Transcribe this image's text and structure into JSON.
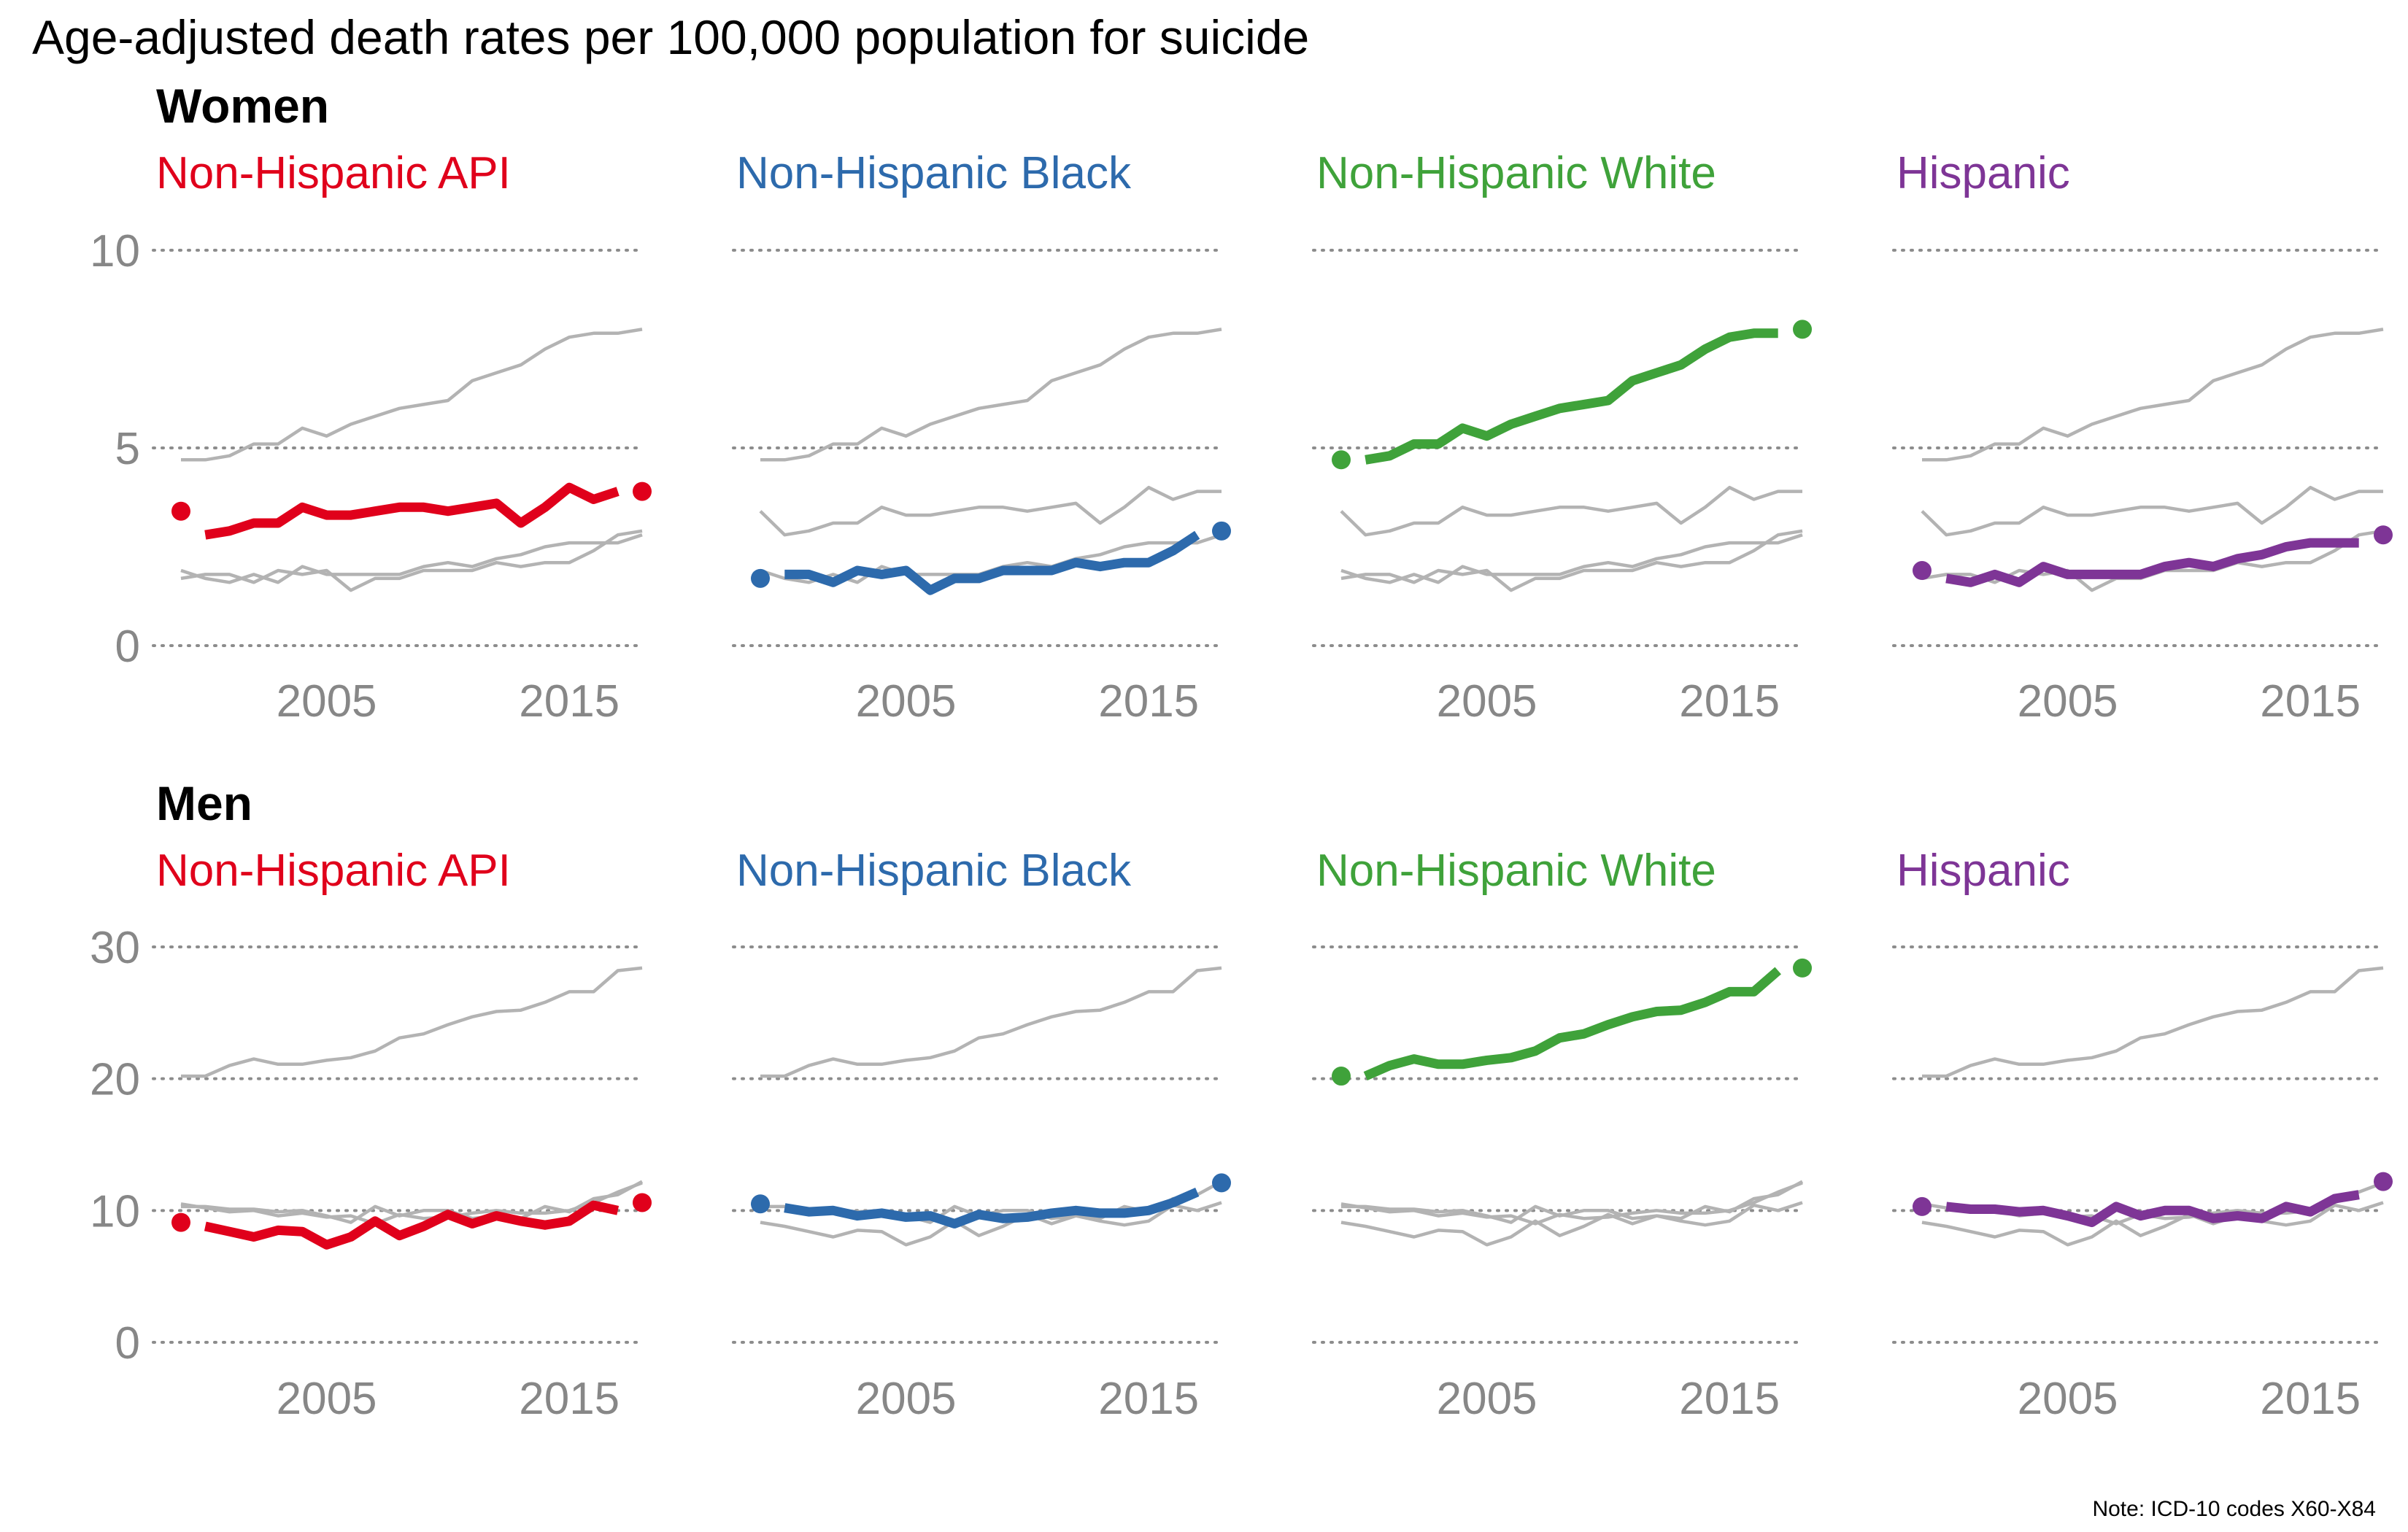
{
  "title": "Age-adjusted death rates per 100,000 population for suicide",
  "note": "Note: ICD-10 codes X60-X84",
  "colors": {
    "Non-Hispanic API": "#e0001b",
    "Non-Hispanic Black": "#2d6aac",
    "Non-Hispanic White": "#3fa23a",
    "Hispanic": "#7e3596",
    "background_series": "#b3b3b3",
    "axis_text": "#878787"
  },
  "chart_data": [
    {
      "type": "line",
      "section": "Women",
      "panels": [
        "Non-Hispanic API",
        "Non-Hispanic Black",
        "Non-Hispanic White",
        "Hispanic"
      ],
      "x": [
        1999,
        2000,
        2001,
        2002,
        2003,
        2004,
        2005,
        2006,
        2007,
        2008,
        2009,
        2010,
        2011,
        2012,
        2013,
        2014,
        2015,
        2016,
        2017,
        2018
      ],
      "x_ticks": [
        2005,
        2015
      ],
      "y_ticks": [
        0,
        5,
        10
      ],
      "ylim": [
        0,
        10
      ],
      "grid": "horizontal dotted",
      "series": [
        {
          "name": "Non-Hispanic API",
          "values": [
            3.4,
            2.8,
            2.9,
            3.1,
            3.1,
            3.5,
            3.3,
            3.3,
            3.4,
            3.5,
            3.5,
            3.4,
            3.5,
            3.6,
            3.1,
            3.5,
            4.0,
            3.7,
            3.9,
            3.9
          ]
        },
        {
          "name": "Non-Hispanic Black",
          "values": [
            1.7,
            1.8,
            1.8,
            1.6,
            1.9,
            1.8,
            1.9,
            1.4,
            1.7,
            1.7,
            1.9,
            1.9,
            1.9,
            2.1,
            2.0,
            2.1,
            2.1,
            2.4,
            2.8,
            2.9
          ]
        },
        {
          "name": "Non-Hispanic White",
          "values": [
            4.7,
            4.7,
            4.8,
            5.1,
            5.1,
            5.5,
            5.3,
            5.6,
            5.8,
            6.0,
            6.1,
            6.2,
            6.7,
            6.9,
            7.1,
            7.5,
            7.8,
            7.9,
            7.9,
            8.0
          ]
        },
        {
          "name": "Hispanic",
          "values": [
            1.9,
            1.7,
            1.6,
            1.8,
            1.6,
            2.0,
            1.8,
            1.8,
            1.8,
            1.8,
            2.0,
            2.1,
            2.0,
            2.2,
            2.3,
            2.5,
            2.6,
            2.6,
            2.6,
            2.8
          ]
        }
      ]
    },
    {
      "type": "line",
      "section": "Men",
      "panels": [
        "Non-Hispanic API",
        "Non-Hispanic Black",
        "Non-Hispanic White",
        "Hispanic"
      ],
      "x": [
        1999,
        2000,
        2001,
        2002,
        2003,
        2004,
        2005,
        2006,
        2007,
        2008,
        2009,
        2010,
        2011,
        2012,
        2013,
        2014,
        2015,
        2016,
        2017,
        2018
      ],
      "x_ticks": [
        2005,
        2015
      ],
      "y_ticks": [
        0,
        10,
        20,
        30
      ],
      "ylim": [
        0,
        30
      ],
      "grid": "horizontal dotted",
      "series": [
        {
          "name": "Non-Hispanic API",
          "values": [
            9.1,
            8.8,
            8.4,
            8.0,
            8.5,
            8.4,
            7.4,
            8.0,
            9.2,
            8.1,
            8.8,
            9.7,
            9.0,
            9.6,
            9.2,
            8.9,
            9.2,
            10.4,
            10.0,
            10.6
          ]
        },
        {
          "name": "Non-Hispanic Black",
          "values": [
            10.5,
            10.2,
            9.9,
            10.0,
            9.6,
            9.8,
            9.5,
            9.6,
            9.0,
            9.7,
            9.4,
            9.5,
            9.8,
            10.0,
            9.8,
            9.8,
            10.0,
            10.6,
            11.4,
            12.1
          ]
        },
        {
          "name": "Non-Hispanic White",
          "values": [
            20.2,
            20.2,
            21.0,
            21.5,
            21.1,
            21.1,
            21.4,
            21.6,
            22.1,
            23.1,
            23.4,
            24.1,
            24.7,
            25.1,
            25.2,
            25.8,
            26.6,
            26.6,
            28.2,
            28.4
          ]
        },
        {
          "name": "Hispanic",
          "values": [
            10.3,
            10.3,
            10.1,
            10.1,
            9.9,
            10.0,
            9.6,
            9.1,
            10.3,
            9.6,
            10.0,
            10.0,
            9.4,
            9.6,
            9.4,
            10.3,
            9.9,
            10.9,
            11.2,
            12.2
          ]
        }
      ]
    }
  ]
}
